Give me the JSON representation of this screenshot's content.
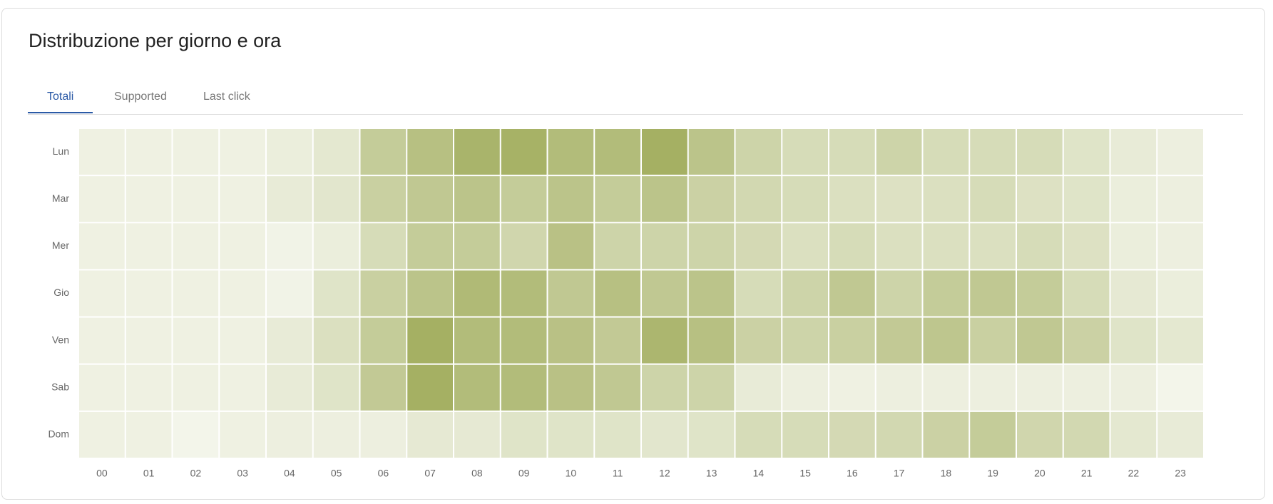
{
  "header": {
    "title": "Distribuzione per giorno e ora"
  },
  "tabs": [
    "Totali",
    "Supported",
    "Last click"
  ],
  "chart_data": {
    "type": "heatmap",
    "rows": [
      "Lun",
      "Mar",
      "Mer",
      "Gio",
      "Ven",
      "Sab",
      "Dom"
    ],
    "columns": [
      "00",
      "01",
      "02",
      "03",
      "04",
      "05",
      "06",
      "07",
      "08",
      "09",
      "10",
      "11",
      "12",
      "13",
      "14",
      "15",
      "16",
      "17",
      "18",
      "19",
      "20",
      "21",
      "22",
      "23"
    ],
    "values": [
      [
        8,
        8,
        8,
        8,
        12,
        20,
        55,
        70,
        85,
        88,
        75,
        75,
        90,
        65,
        45,
        35,
        35,
        45,
        35,
        35,
        35,
        25,
        15,
        10
      ],
      [
        8,
        8,
        8,
        8,
        15,
        22,
        50,
        60,
        65,
        55,
        65,
        55,
        65,
        48,
        40,
        35,
        30,
        28,
        30,
        35,
        28,
        25,
        12,
        10
      ],
      [
        8,
        8,
        8,
        8,
        5,
        12,
        35,
        55,
        55,
        42,
        68,
        45,
        45,
        45,
        38,
        30,
        35,
        30,
        30,
        30,
        35,
        28,
        12,
        10
      ],
      [
        8,
        8,
        8,
        8,
        5,
        25,
        50,
        65,
        78,
        75,
        60,
        70,
        60,
        65,
        35,
        45,
        60,
        45,
        55,
        60,
        55,
        35,
        18,
        12
      ],
      [
        8,
        8,
        8,
        8,
        15,
        30,
        55,
        90,
        75,
        75,
        68,
        58,
        82,
        70,
        48,
        45,
        50,
        58,
        62,
        50,
        60,
        48,
        25,
        20
      ],
      [
        8,
        8,
        8,
        8,
        15,
        25,
        58,
        90,
        75,
        75,
        68,
        60,
        45,
        45,
        15,
        10,
        8,
        10,
        10,
        10,
        10,
        10,
        10,
        3
      ],
      [
        8,
        8,
        3,
        8,
        10,
        10,
        10,
        18,
        18,
        25,
        25,
        25,
        22,
        25,
        35,
        35,
        38,
        40,
        48,
        55,
        42,
        40,
        20,
        15
      ]
    ],
    "color_low": "#f3f5ea",
    "color_high": "#a5b063"
  }
}
